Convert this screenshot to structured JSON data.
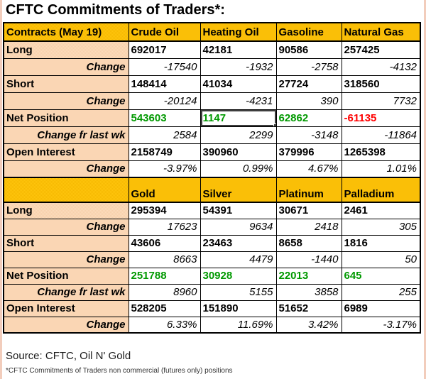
{
  "title": "CFTC Commitments of Traders*:",
  "colors": {
    "header_gold": "#fdbf00",
    "label_peach": "#fbd8b6",
    "net_positive": "#009900",
    "net_negative": "#ff0000",
    "border": "#000000"
  },
  "selection": {
    "section": 0,
    "row": 4,
    "col": 1,
    "note": "spreadsheet cell cursor on Heating Oil Net Position"
  },
  "table": {
    "sections": [
      {
        "header": [
          "Contracts (May 19)",
          "Crude Oil",
          "Heating Oil",
          "Gasoline",
          "Natural Gas"
        ],
        "rows": [
          {
            "label": "Long",
            "type": "value",
            "values": [
              "692017",
              "42181",
              "90586",
              "257425"
            ]
          },
          {
            "label": "Change",
            "type": "change",
            "values": [
              "-17540",
              "-1932",
              "-2758",
              "-4132"
            ]
          },
          {
            "label": "Short",
            "type": "value",
            "values": [
              "148414",
              "41034",
              "27724",
              "318560"
            ]
          },
          {
            "label": "Change",
            "type": "change",
            "values": [
              "-20124",
              "-4231",
              "390",
              "7732"
            ]
          },
          {
            "label": "Net Position",
            "type": "net",
            "values": [
              "543603",
              "1147",
              "62862",
              "-61135"
            ]
          },
          {
            "label": "Change fr last wk",
            "type": "change",
            "values": [
              "2584",
              "2299",
              "-3148",
              "-11864"
            ]
          },
          {
            "label": "Open Interest",
            "type": "value",
            "values": [
              "2158749",
              "390960",
              "379996",
              "1265398"
            ]
          },
          {
            "label": "Change",
            "type": "change",
            "values": [
              "-3.97%",
              "0.99%",
              "4.67%",
              "1.01%"
            ]
          }
        ]
      },
      {
        "header": [
          "",
          "Gold",
          "Silver",
          "Platinum",
          "Palladium"
        ],
        "rows": [
          {
            "label": "Long",
            "type": "value",
            "values": [
              "295394",
              "54391",
              "30671",
              "2461"
            ]
          },
          {
            "label": "Change",
            "type": "change",
            "values": [
              "17623",
              "9634",
              "2418",
              "305"
            ]
          },
          {
            "label": "Short",
            "type": "value",
            "values": [
              "43606",
              "23463",
              "8658",
              "1816"
            ]
          },
          {
            "label": "Change",
            "type": "change",
            "values": [
              "8663",
              "4479",
              "-1440",
              "50"
            ]
          },
          {
            "label": "Net Position",
            "type": "net",
            "values": [
              "251788",
              "30928",
              "22013",
              "645"
            ]
          },
          {
            "label": "Change fr last wk",
            "type": "change",
            "values": [
              "8960",
              "5155",
              "3858",
              "255"
            ]
          },
          {
            "label": "Open Interest",
            "type": "value",
            "values": [
              "528205",
              "151890",
              "51652",
              "6989"
            ]
          },
          {
            "label": "Change",
            "type": "change",
            "values": [
              "6.33%",
              "11.69%",
              "3.42%",
              "-3.17%"
            ]
          }
        ]
      }
    ]
  },
  "footer": {
    "source": "Source: CFTC, Oil N' Gold",
    "footnote": "*CFTC Commitments of Traders non commercial (futures only) positions"
  }
}
